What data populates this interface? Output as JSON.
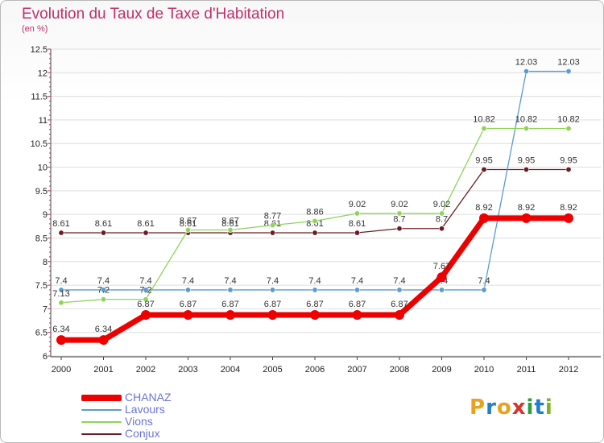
{
  "header": {
    "title": "Evolution du Taux de Taxe d'Habitation",
    "subtitle": "(en %)"
  },
  "logo": {
    "text": "Proxiti",
    "letters": [
      {
        "ch": "P",
        "color": "#e8a21d"
      },
      {
        "ch": "r",
        "color": "#1f7fc8"
      },
      {
        "ch": "o",
        "color": "#e8a21d"
      },
      {
        "ch": "x",
        "color": "#d8342b"
      },
      {
        "ch": "i",
        "color": "#2f9e3a"
      },
      {
        "ch": "t",
        "color": "#1f7fc8"
      },
      {
        "ch": "i",
        "color": "#7fb21f"
      }
    ]
  },
  "chart_data": {
    "type": "line",
    "title": "Evolution du Taux de Taxe d'Habitation",
    "subtitle": "(en %)",
    "xlabel": "",
    "ylabel": "",
    "x": [
      "2000",
      "2001",
      "2002",
      "2003",
      "2004",
      "2005",
      "2006",
      "2007",
      "2008",
      "2009",
      "2010",
      "2011",
      "2012"
    ],
    "ylim": [
      6,
      12.5
    ],
    "y_ticks": [
      "6",
      "6.5",
      "7",
      "7.5",
      "8",
      "8.5",
      "9",
      "9.5",
      "10",
      "10.5",
      "11",
      "11.5",
      "12",
      "12.5"
    ],
    "grid": "horizontal",
    "legend_position": "bottom-left",
    "series": [
      {
        "name": "Conjux",
        "color": "#6b1c22",
        "label_color": "#333333",
        "line_width": 1.3,
        "marker_radius": 3.2,
        "values": [
          8.61,
          8.61,
          8.61,
          8.61,
          8.61,
          8.61,
          8.61,
          8.61,
          8.7,
          8.7,
          9.95,
          9.95,
          9.95
        ],
        "labels": [
          "8.61",
          "8.61",
          "8.61",
          "8.61",
          "8.61",
          "8.61",
          "8.61",
          "8.61",
          "8.7",
          "8.7",
          "9.95",
          "9.95",
          "9.95"
        ]
      },
      {
        "name": "Lavours",
        "color": "#5b9bcf",
        "label_color": "#333333",
        "line_width": 1.3,
        "marker_radius": 3.2,
        "values": [
          7.4,
          7.4,
          7.4,
          7.4,
          7.4,
          7.4,
          7.4,
          7.4,
          7.4,
          7.4,
          7.4,
          12.03,
          12.03
        ],
        "labels": [
          "7.4",
          "7.4",
          "7.4",
          "7.4",
          "7.4",
          "7.4",
          "7.4",
          "7.4",
          "7.4",
          "7.4",
          "7.4",
          "12.03",
          "12.03"
        ]
      },
      {
        "name": "Vions",
        "color": "#8fd35a",
        "label_color": "#333333",
        "line_width": 1.3,
        "marker_radius": 3.2,
        "values": [
          7.13,
          7.2,
          7.2,
          8.67,
          8.67,
          8.77,
          8.86,
          9.02,
          9.02,
          9.02,
          10.82,
          10.82,
          10.82
        ],
        "labels": [
          "7.13",
          "7.2",
          "7.2",
          "8.67",
          "8.67",
          "8.77",
          "8.86",
          "9.02",
          "9.02",
          "9.02",
          "10.82",
          "10.82",
          "10.82"
        ]
      },
      {
        "name": "CHANAZ",
        "color": "#ee0000",
        "label_color": "#222222",
        "line_width": 7,
        "marker_radius": 6,
        "values": [
          6.34,
          6.34,
          6.87,
          6.87,
          6.87,
          6.87,
          6.87,
          6.87,
          6.87,
          7.67,
          8.92,
          8.92,
          8.92
        ],
        "labels": [
          "6.34",
          "6.34",
          "6.87",
          "6.87",
          "6.87",
          "6.87",
          "6.87",
          "6.87",
          "6.87",
          "7.67",
          "8.92",
          "8.92",
          "8.92"
        ]
      }
    ],
    "legend": [
      {
        "name": "CHANAZ",
        "color": "#ee0000",
        "thickness": 8,
        "label_color": "#6b74d8"
      },
      {
        "name": "Lavours",
        "color": "#5b9bcf",
        "thickness": 2,
        "label_color": "#6b74d8"
      },
      {
        "name": "Vions",
        "color": "#8fd35a",
        "thickness": 2,
        "label_color": "#6b74d8"
      },
      {
        "name": "Conjux",
        "color": "#6b1c22",
        "thickness": 2,
        "label_color": "#6b74d8"
      }
    ]
  }
}
